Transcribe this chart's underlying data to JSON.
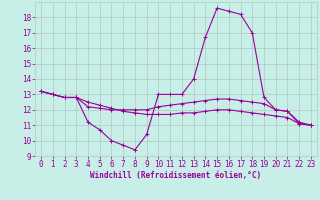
{
  "xlabel": "Windchill (Refroidissement éolien,°C)",
  "bg_color": "#c8eee8",
  "line_color": "#990099",
  "grid_color": "#b0c8c4",
  "xlim": [
    -0.5,
    23.5
  ],
  "ylim": [
    9,
    19
  ],
  "yticks": [
    9,
    10,
    11,
    12,
    13,
    14,
    15,
    16,
    17,
    18
  ],
  "xticks": [
    0,
    1,
    2,
    3,
    4,
    5,
    6,
    7,
    8,
    9,
    10,
    11,
    12,
    13,
    14,
    15,
    16,
    17,
    18,
    19,
    20,
    21,
    22,
    23
  ],
  "curve1_x": [
    0,
    1,
    2,
    3,
    4,
    5,
    6,
    7,
    8,
    9,
    10,
    11,
    12,
    13,
    14,
    15,
    16,
    17,
    18,
    19,
    20,
    21,
    22,
    23
  ],
  "curve1_y": [
    13.2,
    13.0,
    12.8,
    12.8,
    11.2,
    10.7,
    10.0,
    9.7,
    9.4,
    10.4,
    13.0,
    13.0,
    13.0,
    14.0,
    16.7,
    18.6,
    18.4,
    18.2,
    17.0,
    12.8,
    12.0,
    11.9,
    11.1,
    11.0
  ],
  "curve2_x": [
    0,
    1,
    2,
    3,
    4,
    5,
    6,
    7,
    8,
    9,
    10,
    11,
    12,
    13,
    14,
    15,
    16,
    17,
    18,
    19,
    20,
    21,
    22,
    23
  ],
  "curve2_y": [
    13.2,
    13.0,
    12.8,
    12.8,
    12.2,
    12.1,
    12.0,
    12.0,
    12.0,
    12.0,
    12.2,
    12.3,
    12.4,
    12.5,
    12.6,
    12.7,
    12.7,
    12.6,
    12.5,
    12.4,
    12.0,
    11.9,
    11.2,
    11.0
  ],
  "curve3_x": [
    0,
    1,
    2,
    3,
    4,
    5,
    6,
    7,
    8,
    9,
    10,
    11,
    12,
    13,
    14,
    15,
    16,
    17,
    18,
    19,
    20,
    21,
    22,
    23
  ],
  "curve3_y": [
    13.2,
    13.0,
    12.8,
    12.8,
    12.5,
    12.3,
    12.1,
    11.9,
    11.8,
    11.7,
    11.7,
    11.7,
    11.8,
    11.8,
    11.9,
    12.0,
    12.0,
    11.9,
    11.8,
    11.7,
    11.6,
    11.5,
    11.1,
    11.0
  ],
  "xlabel_fontsize": 5.5,
  "tick_fontsize": 5.5
}
